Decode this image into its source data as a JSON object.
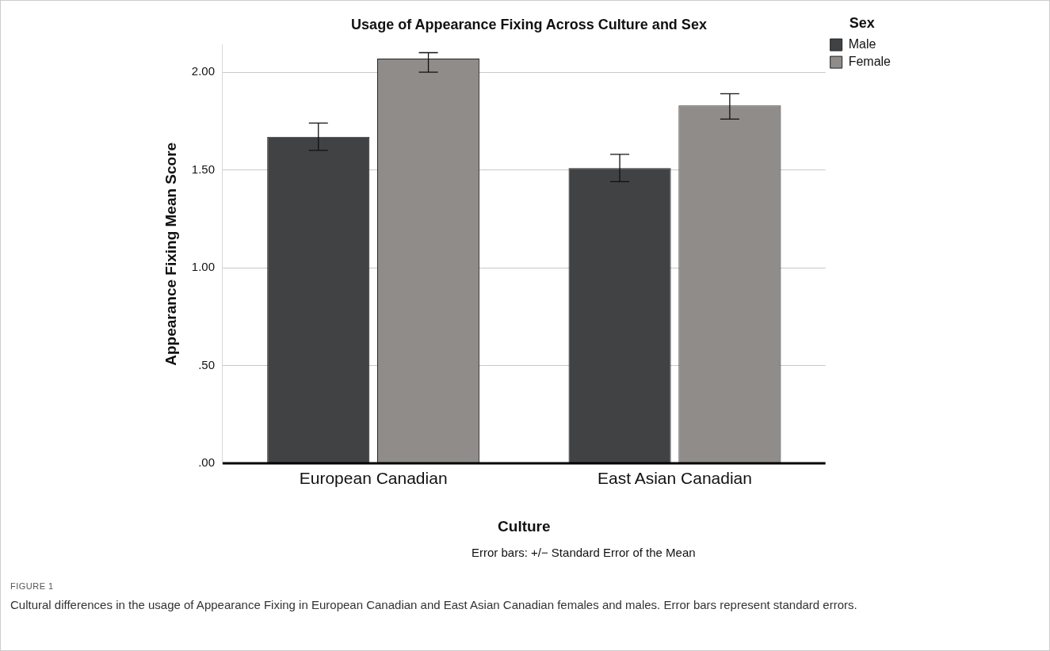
{
  "chart_data": {
    "type": "bar",
    "title": "Usage of Appearance Fixing Across Culture and Sex",
    "xlabel": "Culture",
    "ylabel": "Appearance Fixing Mean Score",
    "legend_title": "Sex",
    "categories": [
      "European Canadian",
      "East Asian Canadian"
    ],
    "series": [
      {
        "name": "Male",
        "color": "#414244",
        "values": [
          1.67,
          1.51
        ],
        "errors": [
          [
            1.6,
            1.74
          ],
          [
            1.44,
            1.58
          ]
        ]
      },
      {
        "name": "Female",
        "color": "#8f8c8a",
        "values": [
          2.07,
          1.83
        ],
        "errors": [
          [
            2.0,
            2.1
          ],
          [
            1.76,
            1.89
          ]
        ]
      }
    ],
    "ylim": [
      0,
      2.14
    ],
    "yticks": [
      {
        "value": 0,
        "label": ".00"
      },
      {
        "value": 0.5,
        "label": ".50"
      },
      {
        "value": 1,
        "label": "1.00"
      },
      {
        "value": 1.5,
        "label": "1.50"
      },
      {
        "value": 2,
        "label": "2.00"
      }
    ],
    "grid": "y",
    "legend": "top right",
    "annotations": [
      "Error bars: +/− Standard Error of the Mean",
      "FIGURE 1",
      "Cultural differences in the usage of Appearance Fixing in European Canadian and East Asian Canadian females and males. Error bars represent standard errors."
    ]
  }
}
